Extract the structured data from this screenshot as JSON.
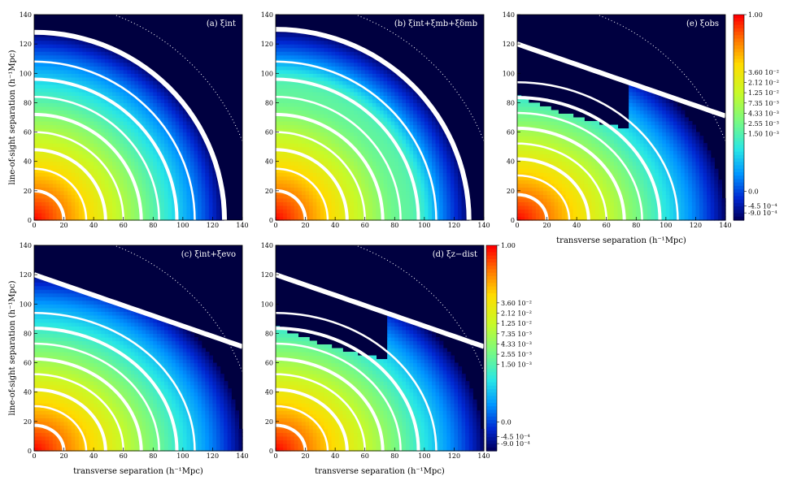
{
  "chart_data": [
    {
      "type": "heatmap",
      "id": "a",
      "title": "(a) ξint",
      "xlabel": "",
      "ylabel": "line-of-sight separation (h⁻¹Mpc)",
      "xlim": [
        0,
        140
      ],
      "ylim": [
        0,
        140
      ],
      "xticks": [
        "0",
        "20",
        "40",
        "60",
        "80",
        "100",
        "120",
        "140"
      ],
      "yticks": [
        "0",
        "20",
        "40",
        "60",
        "80",
        "100",
        "120",
        "140"
      ],
      "model": "isotropic",
      "zero_radius": 128
    },
    {
      "type": "heatmap",
      "id": "b",
      "title": "(b) ξint+ξmb+ξδmb",
      "xlabel": "",
      "ylabel": "",
      "xlim": [
        0,
        140
      ],
      "ylim": [
        0,
        140
      ],
      "xticks": [
        "0",
        "20",
        "40",
        "60",
        "80",
        "100",
        "120",
        "140"
      ],
      "yticks": [
        "0",
        "20",
        "40",
        "60",
        "80",
        "100",
        "120",
        "140"
      ],
      "model": "isotropic-bump",
      "zero_radius": 130
    },
    {
      "type": "heatmap",
      "id": "e",
      "title": "(e) ξobs",
      "xlabel": "transverse separation (h⁻¹Mpc)",
      "ylabel": "",
      "xlim": [
        0,
        140
      ],
      "ylim": [
        0,
        140
      ],
      "xticks": [
        "0",
        "20",
        "40",
        "60",
        "80",
        "100",
        "120",
        "140"
      ],
      "yticks": [
        "0",
        "20",
        "40",
        "60",
        "80",
        "100",
        "120",
        "140"
      ],
      "model": "distorted-hole"
    },
    {
      "type": "heatmap",
      "id": "c",
      "title": "(c) ξint+ξevo",
      "xlabel": "transverse separation (h⁻¹Mpc)",
      "ylabel": "line-of-sight separation (h⁻¹Mpc)",
      "xlim": [
        0,
        140
      ],
      "ylim": [
        0,
        140
      ],
      "xticks": [
        "0",
        "20",
        "40",
        "60",
        "80",
        "100",
        "120",
        "140"
      ],
      "yticks": [
        "0",
        "20",
        "40",
        "60",
        "80",
        "100",
        "120",
        "140"
      ],
      "model": "distorted"
    },
    {
      "type": "heatmap",
      "id": "d",
      "title": "(d) ξz−dist",
      "xlabel": "transverse separation (h⁻¹Mpc)",
      "ylabel": "",
      "xlim": [
        0,
        140
      ],
      "ylim": [
        0,
        140
      ],
      "xticks": [
        "0",
        "20",
        "40",
        "60",
        "80",
        "100",
        "120",
        "140"
      ],
      "yticks": [
        "0",
        "20",
        "40",
        "60",
        "80",
        "100",
        "120",
        "140"
      ],
      "model": "distorted-hole"
    }
  ],
  "colorbar": {
    "labels": [
      "1.00",
      "3.60 10⁻²",
      "2.12 10⁻²",
      "1.25 10⁻²",
      "7.35 10⁻³",
      "4.33 10⁻³",
      "2.55 10⁻³",
      "1.50 10⁻³",
      "0.0",
      "-4.5 10⁻⁴",
      "-9.0 10⁻⁴"
    ],
    "levels": [
      1.0,
      0.036,
      0.0212,
      0.0125,
      0.00735,
      0.00433,
      0.00255,
      0.0015,
      0.0,
      -0.00045,
      -0.0009
    ],
    "colors": [
      "#ff0000",
      "#ff8000",
      "#ffe000",
      "#b0ff30",
      "#40ffb0",
      "#00d0ff",
      "#0080ff",
      "#0030e0",
      "#000070",
      "#000040",
      "#000030"
    ]
  },
  "colors": {
    "background_negative": "#000040",
    "contour": "#ffffff"
  }
}
